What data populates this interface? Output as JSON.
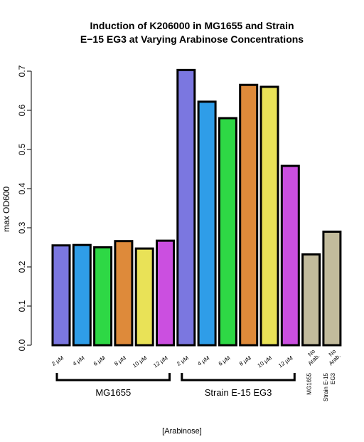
{
  "chart_data": {
    "type": "bar",
    "title_lines": [
      "Induction of K206000 in MG1655 and Strain",
      "E−15 EG3 at Varying Arabinose Concentrations"
    ],
    "ylabel": "max OD600",
    "xlabel": "[Arabinose]",
    "ylim": [
      0,
      0.7
    ],
    "yticks": [
      "0.0",
      "0.1",
      "0.2",
      "0.3",
      "0.4",
      "0.5",
      "0.6",
      "0.7"
    ],
    "categories": [
      "2 μM",
      "4 μM",
      "6 μM",
      "8 μM",
      "10 μM",
      "12 μM",
      "2 μM",
      "4 μM",
      "6 μM",
      "8 μM",
      "10 μM",
      "12 μM",
      "No Arab.",
      "No Arab."
    ],
    "values": [
      0.255,
      0.256,
      0.25,
      0.266,
      0.247,
      0.267,
      0.703,
      0.622,
      0.58,
      0.665,
      0.66,
      0.458,
      0.232,
      0.29
    ],
    "colors": [
      "#7b77e0",
      "#2f9de8",
      "#2ed845",
      "#de8a3a",
      "#e9e257",
      "#cb4fe0",
      "#7b77e0",
      "#2f9de8",
      "#2ed845",
      "#de8a3a",
      "#e9e257",
      "#cb4fe0",
      "#c2bb9c",
      "#c2bb9c"
    ],
    "groups": [
      "MG1655",
      "Strain E-15 EG3"
    ],
    "control_labels": [
      [
        "MG1655"
      ],
      [
        "Strain E-15",
        "EG3"
      ]
    ],
    "grid": false,
    "legend": "none"
  }
}
